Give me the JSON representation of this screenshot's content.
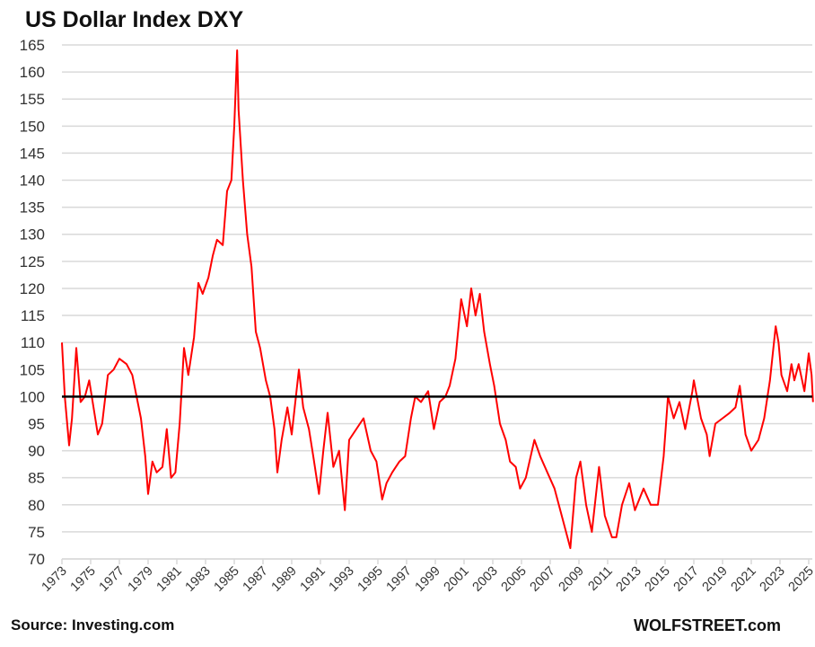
{
  "chart_data": {
    "type": "line",
    "title": "US Dollar Index DXY",
    "source": "Source: Investing.com",
    "brand": "WOLFSTREET.com",
    "xlabel": "",
    "ylabel": "",
    "ylim": [
      70,
      165
    ],
    "xlim": [
      1973,
      2025
    ],
    "yticks": [
      70,
      75,
      80,
      85,
      90,
      95,
      100,
      105,
      110,
      115,
      120,
      125,
      130,
      135,
      140,
      145,
      150,
      155,
      160,
      165
    ],
    "xticks": [
      1973,
      1975,
      1977,
      1979,
      1981,
      1983,
      1985,
      1987,
      1989,
      1991,
      1993,
      1995,
      1997,
      1999,
      2001,
      2003,
      2005,
      2007,
      2009,
      2011,
      2013,
      2015,
      2017,
      2019,
      2021,
      2023,
      2025
    ],
    "grid": true,
    "reference_line": {
      "value": 100,
      "color": "#000000"
    },
    "series": [
      {
        "name": "DXY",
        "color": "#ff0000",
        "x": [
          1973.0,
          1973.2,
          1973.5,
          1973.7,
          1974.0,
          1974.3,
          1974.6,
          1974.9,
          1975.2,
          1975.5,
          1975.8,
          1976.2,
          1976.6,
          1977.0,
          1977.5,
          1977.9,
          1978.2,
          1978.5,
          1978.8,
          1979.0,
          1979.3,
          1979.6,
          1980.0,
          1980.3,
          1980.6,
          1980.9,
          1981.2,
          1981.5,
          1981.8,
          1982.2,
          1982.5,
          1982.8,
          1983.2,
          1983.5,
          1983.8,
          1984.2,
          1984.5,
          1984.8,
          1985.0,
          1985.2,
          1985.3,
          1985.6,
          1985.9,
          1986.2,
          1986.5,
          1986.8,
          1987.2,
          1987.5,
          1987.8,
          1988.0,
          1988.3,
          1988.7,
          1989.0,
          1989.5,
          1989.8,
          1990.2,
          1990.5,
          1990.9,
          1991.2,
          1991.5,
          1991.9,
          1992.3,
          1992.7,
          1993.0,
          1993.5,
          1994.0,
          1994.5,
          1994.9,
          1995.3,
          1995.6,
          1996.0,
          1996.5,
          1996.9,
          1997.3,
          1997.6,
          1998.0,
          1998.5,
          1998.9,
          1999.3,
          1999.7,
          2000.0,
          2000.4,
          2000.8,
          2001.2,
          2001.5,
          2001.8,
          2002.1,
          2002.4,
          2002.8,
          2003.1,
          2003.5,
          2003.9,
          2004.2,
          2004.6,
          2004.9,
          2005.3,
          2005.9,
          2006.3,
          2006.8,
          2007.3,
          2007.8,
          2008.2,
          2008.4,
          2008.8,
          2009.1,
          2009.5,
          2009.9,
          2010.4,
          2010.8,
          2011.3,
          2011.6,
          2012.0,
          2012.5,
          2012.9,
          2013.5,
          2014.0,
          2014.5,
          2014.9,
          2015.2,
          2015.6,
          2016.0,
          2016.4,
          2016.9,
          2017.0,
          2017.5,
          2017.9,
          2018.1,
          2018.5,
          2019.0,
          2019.5,
          2019.9,
          2020.2,
          2020.6,
          2021.0,
          2021.5,
          2021.9,
          2022.3,
          2022.7,
          2022.9,
          2023.1,
          2023.5,
          2023.8,
          2024.0,
          2024.3,
          2024.7,
          2025.0,
          2025.2,
          2025.3
        ],
        "y": [
          110,
          100,
          91,
          96,
          109,
          99,
          100,
          103,
          98,
          93,
          95,
          104,
          105,
          107,
          106,
          104,
          100,
          96,
          89,
          82,
          88,
          86,
          87,
          94,
          85,
          86,
          95,
          109,
          104,
          111,
          121,
          119,
          122,
          126,
          129,
          128,
          138,
          140,
          150,
          164,
          153,
          140,
          130,
          124,
          112,
          109,
          103,
          100,
          94,
          86,
          92,
          98,
          93,
          105,
          98,
          94,
          89,
          82,
          90,
          97,
          87,
          90,
          79,
          92,
          94,
          96,
          90,
          88,
          81,
          84,
          86,
          88,
          89,
          96,
          100,
          99,
          101,
          94,
          99,
          100,
          102,
          107,
          118,
          113,
          120,
          115,
          119,
          112,
          106,
          102,
          95,
          92,
          88,
          87,
          83,
          85,
          92,
          89,
          86,
          83,
          78,
          74,
          72,
          85,
          88,
          80,
          75,
          87,
          78,
          74,
          74,
          80,
          84,
          79,
          83,
          80,
          80,
          89,
          100,
          96,
          99,
          94,
          101,
          103,
          96,
          93,
          89,
          95,
          96,
          97,
          98,
          102,
          93,
          90,
          92,
          96,
          103,
          113,
          110,
          104,
          101,
          106,
          103,
          106,
          101,
          108,
          104,
          99
        ]
      }
    ]
  }
}
